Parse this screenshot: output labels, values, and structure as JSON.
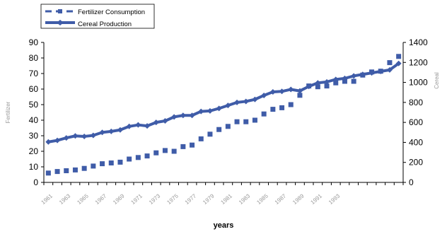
{
  "chart_data": {
    "type": "line",
    "title": "",
    "xlabel": "years",
    "ylabel_left": "Fertilizer",
    "ylabel_right": "Cereal",
    "grid": false,
    "legend_position": "top-left",
    "x_tick_labels": [
      "1961",
      "1963",
      "1965",
      "1967",
      "1969",
      "1971",
      "1973",
      "1975",
      "1977",
      "1979",
      "1981",
      "1983",
      "1985",
      "1987",
      "1989",
      "1991",
      "1993"
    ],
    "x": [
      1,
      2,
      3,
      4,
      5,
      6,
      7,
      8,
      9,
      10,
      11,
      12,
      13,
      14,
      15,
      16,
      17,
      18,
      19,
      20,
      21,
      22,
      23,
      24,
      25,
      26,
      27,
      28,
      29,
      30,
      31,
      32,
      33,
      34,
      35,
      36,
      37,
      38,
      39,
      40
    ],
    "y_left": {
      "min": 0,
      "max": 90,
      "step": 10,
      "ticks": [
        0,
        10,
        20,
        30,
        40,
        50,
        60,
        70,
        80,
        90
      ]
    },
    "y_right": {
      "min": 0,
      "max": 1400,
      "step": 200,
      "ticks": [
        0,
        200,
        400,
        600,
        800,
        1000,
        1200,
        1400
      ]
    },
    "series": [
      {
        "name": "Fertilizer Consumption",
        "axis": "left",
        "style": "dashed",
        "color": "#3f5ca8",
        "values": [
          6,
          7,
          7.5,
          8,
          9,
          10.5,
          12,
          12.5,
          13,
          15,
          16,
          17,
          19,
          20.5,
          20,
          23,
          24,
          28,
          31,
          34,
          36,
          39,
          39,
          40,
          44,
          47,
          48,
          50,
          56,
          62,
          61.5,
          62,
          64,
          65,
          65,
          69,
          71,
          71.5,
          77,
          81
        ]
      },
      {
        "name": "Cereal Production",
        "axis": "right",
        "style": "solid",
        "color": "#3f5ca8",
        "values": [
          405,
          420,
          445,
          465,
          460,
          470,
          500,
          510,
          525,
          560,
          575,
          565,
          600,
          615,
          655,
          670,
          670,
          710,
          715,
          740,
          770,
          800,
          810,
          830,
          870,
          905,
          910,
          930,
          915,
          960,
          995,
          1005,
          1030,
          1040,
          1065,
          1080,
          1095,
          1110,
          1125,
          1190
        ]
      }
    ]
  }
}
